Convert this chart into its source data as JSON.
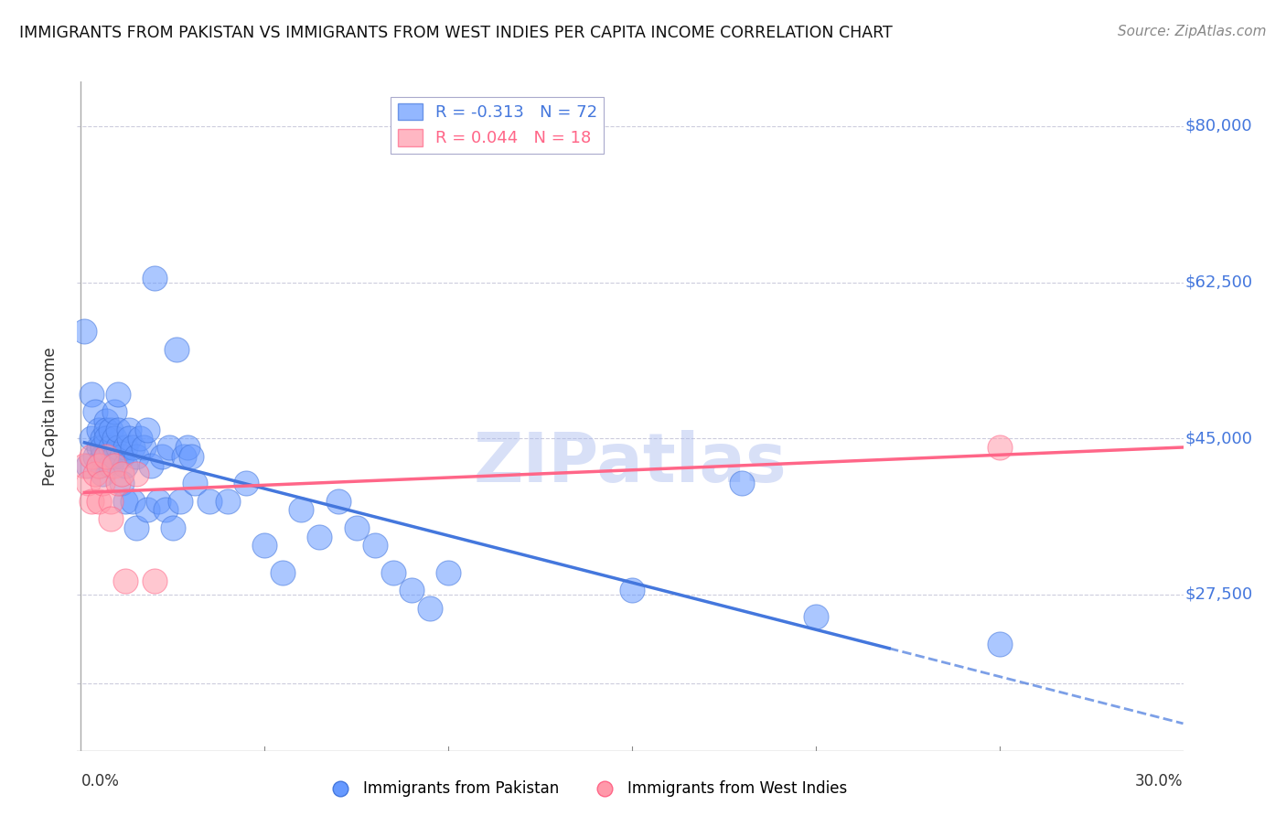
{
  "title": "IMMIGRANTS FROM PAKISTAN VS IMMIGRANTS FROM WEST INDIES PER CAPITA INCOME CORRELATION CHART",
  "source": "Source: ZipAtlas.com",
  "ylabel": "Per Capita Income",
  "xlim": [
    0.0,
    0.3
  ],
  "ylim": [
    10000,
    85000
  ],
  "legend_entry1": "R = -0.313   N = 72",
  "legend_entry2": "R = 0.044   N = 18",
  "legend_label1": "Immigrants from Pakistan",
  "legend_label2": "Immigrants from West Indies",
  "blue_color": "#6699FF",
  "pink_color": "#FF99AA",
  "line_blue": "#4477DD",
  "line_pink": "#FF6688",
  "watermark": "ZIPatlas",
  "watermark_color": "#AABBEE",
  "pakistan_x": [
    0.001,
    0.002,
    0.003,
    0.003,
    0.004,
    0.004,
    0.005,
    0.005,
    0.005,
    0.006,
    0.006,
    0.006,
    0.006,
    0.007,
    0.007,
    0.007,
    0.007,
    0.008,
    0.008,
    0.008,
    0.009,
    0.009,
    0.009,
    0.01,
    0.01,
    0.01,
    0.011,
    0.011,
    0.012,
    0.012,
    0.012,
    0.013,
    0.013,
    0.014,
    0.014,
    0.015,
    0.015,
    0.016,
    0.017,
    0.018,
    0.018,
    0.019,
    0.02,
    0.021,
    0.022,
    0.023,
    0.024,
    0.025,
    0.026,
    0.027,
    0.028,
    0.029,
    0.03,
    0.031,
    0.035,
    0.04,
    0.045,
    0.05,
    0.055,
    0.06,
    0.065,
    0.07,
    0.075,
    0.08,
    0.085,
    0.09,
    0.095,
    0.1,
    0.15,
    0.2,
    0.25,
    0.18
  ],
  "pakistan_y": [
    57000,
    42000,
    45000,
    50000,
    48000,
    43000,
    46000,
    44000,
    42000,
    45000,
    43000,
    41000,
    44000,
    47000,
    46000,
    43000,
    45000,
    44000,
    42000,
    46000,
    48000,
    43000,
    45000,
    50000,
    44000,
    46000,
    43000,
    40000,
    44000,
    42000,
    38000,
    46000,
    45000,
    44000,
    38000,
    43000,
    35000,
    45000,
    44000,
    37000,
    46000,
    42000,
    63000,
    38000,
    43000,
    37000,
    44000,
    35000,
    55000,
    38000,
    43000,
    44000,
    43000,
    40000,
    38000,
    38000,
    40000,
    33000,
    30000,
    37000,
    34000,
    38000,
    35000,
    33000,
    30000,
    28000,
    26000,
    30000,
    28000,
    25000,
    22000,
    40000
  ],
  "westindies_x": [
    0.001,
    0.002,
    0.003,
    0.003,
    0.004,
    0.005,
    0.005,
    0.006,
    0.007,
    0.008,
    0.008,
    0.009,
    0.01,
    0.011,
    0.012,
    0.015,
    0.02,
    0.25
  ],
  "westindies_y": [
    42000,
    40000,
    38000,
    43000,
    41000,
    42000,
    38000,
    40000,
    43000,
    38000,
    36000,
    42000,
    40000,
    41000,
    29000,
    41000,
    29000,
    44000
  ],
  "grid_color": "#CCCCDD",
  "bg_color": "#FFFFFF"
}
